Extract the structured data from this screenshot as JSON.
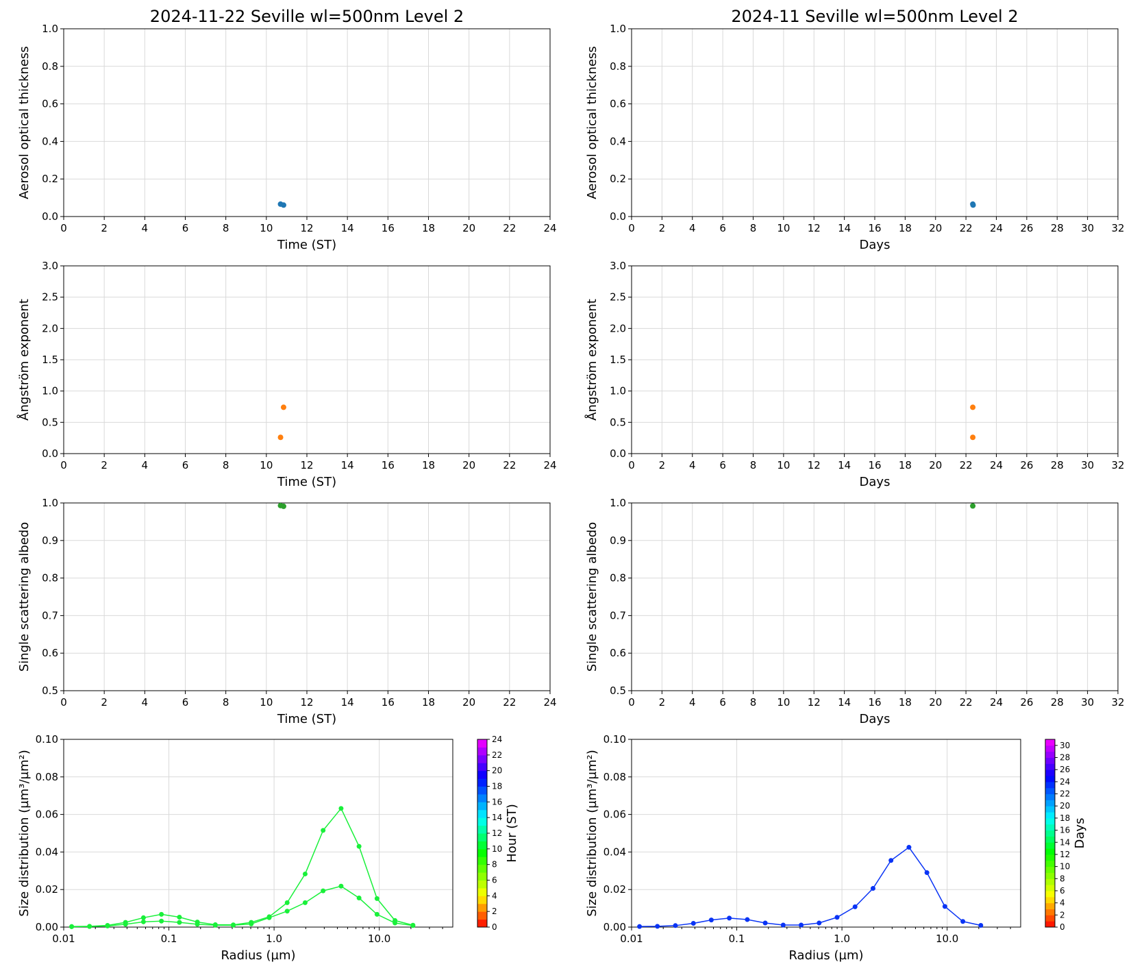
{
  "colors": {
    "aot": "#1f77b4",
    "angstrom": "#ff7f0e",
    "ssa": "#2ca02c",
    "size_daily": "#19f03a",
    "size_monthly": "#0a34f5"
  },
  "chart_data": [
    {
      "id": "aot_daily",
      "type": "scatter",
      "title": "2024-11-22  Seville  wl=500nm  Level 2",
      "xlabel": "Time (ST)",
      "ylabel": "Aerosol optical thickness",
      "xlim": [
        0,
        24
      ],
      "ylim": [
        0,
        1.0
      ],
      "xticks": [
        0,
        2,
        4,
        6,
        8,
        10,
        12,
        14,
        16,
        18,
        20,
        22,
        24
      ],
      "yticks": [
        0.0,
        0.2,
        0.4,
        0.6,
        0.8,
        1.0
      ],
      "ydec": 1,
      "grid": true,
      "color": "aot",
      "points": [
        [
          10.7,
          0.066
        ],
        [
          10.85,
          0.061
        ]
      ]
    },
    {
      "id": "aot_monthly",
      "type": "scatter",
      "title": "2024-11  Seville  wl=500nm  Level 2",
      "xlabel": "Days",
      "ylabel": "Aerosol optical thickness",
      "xlim": [
        0,
        32
      ],
      "ylim": [
        0,
        1.0
      ],
      "xticks": [
        0,
        2,
        4,
        6,
        8,
        10,
        12,
        14,
        16,
        18,
        20,
        22,
        24,
        26,
        28,
        30,
        32
      ],
      "yticks": [
        0.0,
        0.2,
        0.4,
        0.6,
        0.8,
        1.0
      ],
      "ydec": 1,
      "grid": true,
      "color": "aot",
      "points": [
        [
          22.45,
          0.066
        ],
        [
          22.47,
          0.061
        ]
      ]
    },
    {
      "id": "angstrom_daily",
      "type": "scatter",
      "title": "",
      "xlabel": "Time (ST)",
      "ylabel": "Ångström exponent",
      "xlim": [
        0,
        24
      ],
      "ylim": [
        0,
        3.0
      ],
      "xticks": [
        0,
        2,
        4,
        6,
        8,
        10,
        12,
        14,
        16,
        18,
        20,
        22,
        24
      ],
      "yticks": [
        0.0,
        0.5,
        1.0,
        1.5,
        2.0,
        2.5,
        3.0
      ],
      "ydec": 1,
      "grid": true,
      "color": "angstrom",
      "points": [
        [
          10.7,
          0.26
        ],
        [
          10.85,
          0.74
        ]
      ]
    },
    {
      "id": "angstrom_monthly",
      "type": "scatter",
      "title": "",
      "xlabel": "Days",
      "ylabel": "Ångström exponent",
      "xlim": [
        0,
        32
      ],
      "ylim": [
        0,
        3.0
      ],
      "xticks": [
        0,
        2,
        4,
        6,
        8,
        10,
        12,
        14,
        16,
        18,
        20,
        22,
        24,
        26,
        28,
        30,
        32
      ],
      "yticks": [
        0.0,
        0.5,
        1.0,
        1.5,
        2.0,
        2.5,
        3.0
      ],
      "ydec": 1,
      "grid": true,
      "color": "angstrom",
      "points": [
        [
          22.45,
          0.26
        ],
        [
          22.45,
          0.74
        ]
      ]
    },
    {
      "id": "ssa_daily",
      "type": "scatter",
      "title": "",
      "xlabel": "Time (ST)",
      "ylabel": "Single scattering albedo",
      "xlim": [
        0,
        24
      ],
      "ylim": [
        0.5,
        1.0
      ],
      "xticks": [
        0,
        2,
        4,
        6,
        8,
        10,
        12,
        14,
        16,
        18,
        20,
        22,
        24
      ],
      "yticks": [
        0.5,
        0.6,
        0.7,
        0.8,
        0.9,
        1.0
      ],
      "ydec": 1,
      "grid": true,
      "color": "ssa",
      "points": [
        [
          10.7,
          0.993
        ],
        [
          10.85,
          0.991
        ]
      ]
    },
    {
      "id": "ssa_monthly",
      "type": "scatter",
      "title": "",
      "xlabel": "Days",
      "ylabel": "Single scattering albedo",
      "xlim": [
        0,
        32
      ],
      "ylim": [
        0.5,
        1.0
      ],
      "xticks": [
        0,
        2,
        4,
        6,
        8,
        10,
        12,
        14,
        16,
        18,
        20,
        22,
        24,
        26,
        28,
        30,
        32
      ],
      "yticks": [
        0.5,
        0.6,
        0.7,
        0.8,
        0.9,
        1.0
      ],
      "ydec": 1,
      "grid": true,
      "color": "ssa",
      "points": [
        [
          22.45,
          0.992
        ]
      ]
    },
    {
      "id": "size_daily",
      "type": "line",
      "title": "",
      "xlabel": "Radius (µm)",
      "ylabel": "Size distribution (µm³/µm²)",
      "xscale": "log",
      "xlim": [
        0.01,
        50
      ],
      "ylim": [
        0,
        0.1
      ],
      "xticks": [
        0.01,
        0.1,
        1.0,
        10.0
      ],
      "xtick_labels": [
        "0.01",
        "0.1",
        "1.0",
        "10.0"
      ],
      "yticks": [
        0.0,
        0.02,
        0.04,
        0.06,
        0.08,
        0.1
      ],
      "ydec": 2,
      "grid": true,
      "x": [
        0.0119,
        0.0176,
        0.0261,
        0.0387,
        0.0573,
        0.0849,
        0.1259,
        0.1864,
        0.2763,
        0.4094,
        0.6067,
        0.899,
        1.3322,
        1.9741,
        2.9253,
        4.3349,
        6.4237,
        9.5188,
        14.1053,
        20.9
      ],
      "series": [
        {
          "color": "size_daily",
          "values": [
            0.0003,
            0.0004,
            0.0009,
            0.0025,
            0.005,
            0.0068,
            0.0053,
            0.0027,
            0.0013,
            0.0012,
            0.0025,
            0.0055,
            0.013,
            0.0283,
            0.0515,
            0.0632,
            0.043,
            0.0152,
            0.0035,
            0.001
          ]
        },
        {
          "color": "size_daily",
          "values": [
            0.0002,
            0.0003,
            0.0006,
            0.0015,
            0.0028,
            0.0032,
            0.0025,
            0.0015,
            0.001,
            0.001,
            0.0017,
            0.005,
            0.0085,
            0.013,
            0.0193,
            0.0218,
            0.0155,
            0.0068,
            0.0022,
            0.0008
          ]
        }
      ],
      "colorbar": {
        "label": "Hour (ST)",
        "vmin": 0,
        "vmax": 24,
        "ticks": [
          0,
          2,
          4,
          6,
          8,
          10,
          12,
          14,
          16,
          18,
          20,
          22,
          24
        ]
      }
    },
    {
      "id": "size_monthly",
      "type": "line",
      "title": "",
      "xlabel": "Radius (µm)",
      "ylabel": "Size distribution (µm³/µm²)",
      "xscale": "log",
      "xlim": [
        0.01,
        50
      ],
      "ylim": [
        0,
        0.1
      ],
      "xticks": [
        0.01,
        0.1,
        1.0,
        10.0
      ],
      "xtick_labels": [
        "0.01",
        "0.1",
        "1.0",
        "10.0"
      ],
      "yticks": [
        0.0,
        0.02,
        0.04,
        0.06,
        0.08,
        0.1
      ],
      "ydec": 2,
      "grid": true,
      "x": [
        0.0119,
        0.0176,
        0.0261,
        0.0387,
        0.0573,
        0.0849,
        0.1259,
        0.1864,
        0.2763,
        0.4094,
        0.6067,
        0.899,
        1.3322,
        1.9741,
        2.9253,
        4.3349,
        6.4237,
        9.5188,
        14.1053,
        20.9
      ],
      "series": [
        {
          "color": "size_monthly",
          "values": [
            0.0003,
            0.0004,
            0.0008,
            0.002,
            0.0038,
            0.0048,
            0.004,
            0.0022,
            0.0011,
            0.0011,
            0.0022,
            0.0052,
            0.0108,
            0.0206,
            0.0355,
            0.0425,
            0.029,
            0.011,
            0.003,
            0.0009
          ]
        }
      ],
      "colorbar": {
        "label": "Days",
        "vmin": 0,
        "vmax": 31,
        "ticks": [
          0,
          2,
          4,
          6,
          8,
          10,
          12,
          14,
          16,
          18,
          20,
          22,
          24,
          26,
          28,
          30
        ]
      }
    }
  ]
}
